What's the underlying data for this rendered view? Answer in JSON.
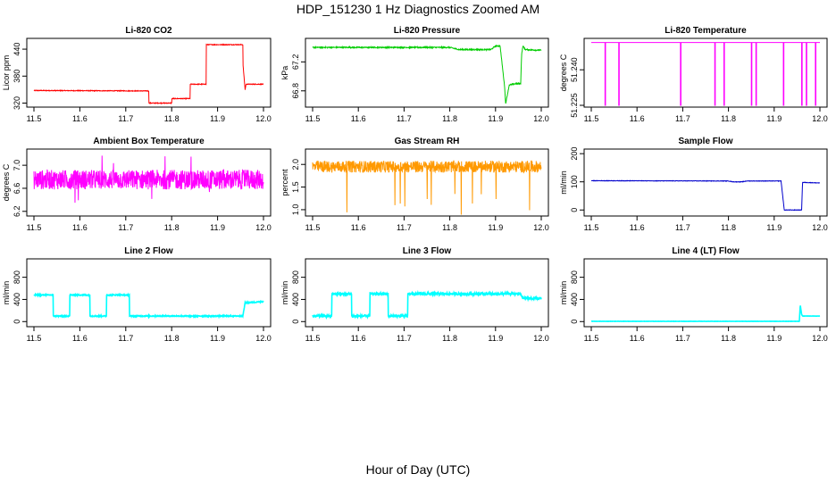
{
  "figure": {
    "title": "HDP_151230  1 Hz Diagnostics Zoomed AM",
    "xlabel": "Hour of Day (UTC)"
  },
  "chart_data": [
    {
      "id": "co2",
      "type": "line",
      "title": "Li-820 CO2",
      "ylabel": "Licor ppm",
      "xlim": [
        11.5,
        12.0
      ],
      "ylim": [
        315,
        460
      ],
      "xticks": [
        11.5,
        11.6,
        11.7,
        11.8,
        11.9,
        12.0
      ],
      "xticklabels": [
        "11.5",
        "11.6",
        "11.7",
        "11.8",
        "11.9",
        "12.0"
      ],
      "yticks": [
        320,
        380,
        440
      ],
      "yticklabels": [
        "320",
        "380",
        "440"
      ],
      "color": "#ff0000",
      "noise": 0.8,
      "series": [
        {
          "x": [
            11.5,
            11.75,
            11.75,
            11.76,
            11.76,
            11.8,
            11.8,
            11.84,
            11.84,
            11.875,
            11.875,
            11.955,
            11.955,
            11.96,
            11.962,
            11.97,
            12.0
          ],
          "y": [
            348,
            347,
            320,
            320,
            320,
            320,
            330,
            330,
            362,
            362,
            450,
            450,
            410,
            350,
            362,
            362,
            362
          ]
        }
      ]
    },
    {
      "id": "pressure",
      "type": "line",
      "title": "Li-820 Pressure",
      "ylabel": "kPa",
      "xlim": [
        11.5,
        12.0
      ],
      "ylim": [
        66.6,
        67.5
      ],
      "xticks": [
        11.5,
        11.6,
        11.7,
        11.8,
        11.9,
        12.0
      ],
      "xticklabels": [
        "11.5",
        "11.6",
        "11.7",
        "11.8",
        "11.9",
        "12.0"
      ],
      "yticks": [
        66.8,
        67.2
      ],
      "yticklabels": [
        "66.8",
        "67.2"
      ],
      "color": "#00cc00",
      "noise": 0.008,
      "series": [
        {
          "x": [
            11.5,
            11.7,
            11.8,
            11.82,
            11.89,
            11.9,
            11.91,
            11.92,
            11.922,
            11.93,
            11.945,
            11.955,
            11.957,
            11.96,
            11.965,
            12.0
          ],
          "y": [
            67.4,
            67.4,
            67.4,
            67.37,
            67.37,
            67.42,
            67.42,
            66.85,
            66.62,
            66.88,
            66.9,
            66.9,
            67.3,
            67.42,
            67.37,
            67.36
          ]
        }
      ]
    },
    {
      "id": "temperature",
      "type": "line",
      "title": "Li-820 Temperature",
      "ylabel": "degrees C",
      "xlim": [
        11.5,
        12.0
      ],
      "ylim": [
        51.225,
        51.2525
      ],
      "xticks": [
        11.5,
        11.6,
        11.7,
        11.8,
        11.9,
        12.0
      ],
      "xticklabels": [
        "11.5",
        "11.6",
        "11.7",
        "11.8",
        "11.9",
        "12.0"
      ],
      "yticks": [
        51.225,
        51.24
      ],
      "yticklabels": [
        "51.225",
        "51.240"
      ],
      "color": "#ff00ff",
      "noise": 0,
      "baseline": 51.2515,
      "drop_to": 51.225,
      "drops": [
        11.53,
        11.56,
        11.695,
        11.77,
        11.79,
        11.85,
        11.86,
        11.92,
        11.96,
        11.97,
        11.99
      ]
    },
    {
      "id": "ambient",
      "type": "line",
      "title": "Ambient Box Temperature",
      "ylabel": "degrees C",
      "xlim": [
        11.5,
        12.0
      ],
      "ylim": [
        6.15,
        7.25
      ],
      "xticks": [
        11.5,
        11.6,
        11.7,
        11.8,
        11.9,
        12.0
      ],
      "xticklabels": [
        "11.5",
        "11.6",
        "11.7",
        "11.8",
        "11.9",
        "12.0"
      ],
      "yticks": [
        6.2,
        6.6,
        7.0
      ],
      "yticklabels": [
        "6.2",
        "6.6",
        "7.0"
      ],
      "color": "#ff00ff",
      "noise": 0.17,
      "series": [
        {
          "x": [
            11.5,
            12.0
          ],
          "y": [
            6.75,
            6.75
          ]
        }
      ]
    },
    {
      "id": "rh",
      "type": "line",
      "title": "Gas Stream RH",
      "ylabel": "percent",
      "xlim": [
        11.5,
        12.0
      ],
      "ylim": [
        0.9,
        2.3
      ],
      "xticks": [
        11.5,
        11.6,
        11.7,
        11.8,
        11.9,
        12.0
      ],
      "xticklabels": [
        "11.5",
        "11.6",
        "11.7",
        "11.8",
        "11.9",
        "12.0"
      ],
      "yticks": [
        1.0,
        1.5,
        2.0
      ],
      "yticklabels": [
        "1.0",
        "1.5",
        "2.0"
      ],
      "color": "#ff9900",
      "noise": 0.13,
      "series": [
        {
          "x": [
            11.5,
            12.0
          ],
          "y": [
            1.95,
            1.95
          ]
        }
      ]
    },
    {
      "id": "sample",
      "type": "line",
      "title": "Sample Flow",
      "ylabel": "ml/min",
      "xlim": [
        11.5,
        12.0
      ],
      "ylim": [
        -15,
        210
      ],
      "xticks": [
        11.5,
        11.6,
        11.7,
        11.8,
        11.9,
        12.0
      ],
      "xticklabels": [
        "11.5",
        "11.6",
        "11.7",
        "11.8",
        "11.9",
        "12.0"
      ],
      "yticks": [
        0,
        100,
        200
      ],
      "yticklabels": [
        "0",
        "100",
        "200"
      ],
      "color": "#0000cc",
      "noise": 0.8,
      "series": [
        {
          "x": [
            11.5,
            11.8,
            11.81,
            11.83,
            11.84,
            11.915,
            11.922,
            11.955,
            11.96,
            11.962,
            12.0
          ],
          "y": [
            104,
            103,
            100,
            100,
            103,
            103,
            0,
            0,
            0,
            98,
            96
          ]
        }
      ]
    },
    {
      "id": "line2",
      "type": "line",
      "title": "Line 2 Flow",
      "ylabel": "ml/min",
      "xlim": [
        11.5,
        12.0
      ],
      "ylim": [
        -60,
        1100
      ],
      "xticks": [
        11.5,
        11.6,
        11.7,
        11.8,
        11.9,
        12.0
      ],
      "xticklabels": [
        "11.5",
        "11.6",
        "11.7",
        "11.8",
        "11.9",
        "12.0"
      ],
      "yticks": [
        0,
        400,
        800
      ],
      "yticklabels": [
        "0",
        "400",
        "800"
      ],
      "color": "#00ffff",
      "noise": 9,
      "series": [
        {
          "x": [
            11.5,
            11.542,
            11.542,
            11.578,
            11.578,
            11.622,
            11.622,
            11.658,
            11.658,
            11.708,
            11.708,
            11.955,
            11.96,
            12.0
          ],
          "y": [
            480,
            480,
            100,
            100,
            480,
            480,
            100,
            100,
            480,
            480,
            100,
            100,
            340,
            360
          ]
        }
      ]
    },
    {
      "id": "line3",
      "type": "line",
      "title": "Line 3 Flow",
      "ylabel": "ml/min",
      "xlim": [
        11.5,
        12.0
      ],
      "ylim": [
        -60,
        1100
      ],
      "xticks": [
        11.5,
        11.6,
        11.7,
        11.8,
        11.9,
        12.0
      ],
      "xticklabels": [
        "11.5",
        "11.6",
        "11.7",
        "11.8",
        "11.9",
        "12.0"
      ],
      "yticks": [
        0,
        400,
        800
      ],
      "yticklabels": [
        "0",
        "400",
        "800"
      ],
      "color": "#00ffff",
      "noise": 22,
      "series": [
        {
          "x": [
            11.5,
            11.542,
            11.542,
            11.585,
            11.585,
            11.625,
            11.625,
            11.665,
            11.665,
            11.708,
            11.708,
            11.955,
            11.96,
            12.0
          ],
          "y": [
            100,
            100,
            500,
            500,
            100,
            100,
            500,
            500,
            100,
            100,
            500,
            500,
            420,
            420
          ]
        }
      ]
    },
    {
      "id": "line4",
      "type": "line",
      "title": "Line 4 (LT) Flow",
      "ylabel": "ml/min",
      "xlim": [
        11.5,
        12.0
      ],
      "ylim": [
        -60,
        1100
      ],
      "xticks": [
        11.5,
        11.6,
        11.7,
        11.8,
        11.9,
        12.0
      ],
      "xticklabels": [
        "11.5",
        "11.6",
        "11.7",
        "11.8",
        "11.9",
        "12.0"
      ],
      "yticks": [
        0,
        400,
        800
      ],
      "yticklabels": [
        "0",
        "400",
        "800"
      ],
      "color": "#00ffff",
      "noise": 2,
      "series": [
        {
          "x": [
            11.5,
            11.955,
            11.957,
            11.96,
            11.962,
            12.0
          ],
          "y": [
            5,
            5,
            300,
            130,
            100,
            100
          ]
        }
      ]
    }
  ]
}
